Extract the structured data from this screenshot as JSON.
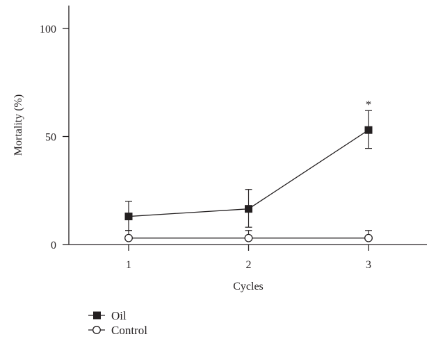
{
  "chart_data": {
    "type": "line",
    "title": "",
    "xlabel": "Cycles",
    "ylabel": "Mortality (%)",
    "x": [
      1,
      2,
      3
    ],
    "xlim": [
      0.5,
      3.5
    ],
    "ylim": [
      0,
      110
    ],
    "yticks": [
      0,
      50,
      100
    ],
    "xticks": [
      1,
      2,
      3
    ],
    "grid": false,
    "legend_position": "bottom-left",
    "series": [
      {
        "name": "Oil",
        "marker": "filled-square",
        "color": "#231f20",
        "values": [
          13,
          16.5,
          53
        ],
        "error_upper": [
          7,
          9,
          9
        ],
        "error_lower": [
          6.5,
          8.5,
          8.5
        ]
      },
      {
        "name": "Control",
        "marker": "open-circle",
        "color": "#231f20",
        "values": [
          3,
          3,
          3
        ],
        "error_upper": [
          3.5,
          3.5,
          3.5
        ]
      }
    ],
    "annotations": [
      {
        "x": 3,
        "text": "*"
      }
    ]
  }
}
